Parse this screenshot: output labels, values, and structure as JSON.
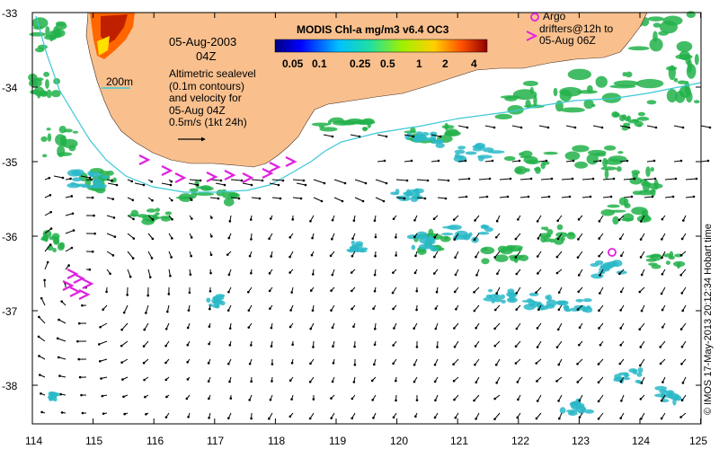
{
  "map": {
    "date": "05-Aug-2003",
    "time": "04Z",
    "isobath_label": "200m",
    "sealevel_text": [
      "Altimetric sealevel",
      "(0.1m contours)",
      "and velocity for",
      "05-Aug 04Z",
      "0.5m/s (1kt 24h)"
    ],
    "colorbar_title": "MODIS Chl-a mg/m3 v6.4 OC3",
    "colorbar_ticks": [
      "0.05",
      "0.1",
      "0.25",
      "0.5",
      "1",
      "2",
      "4"
    ],
    "argo_text": [
      "Argo",
      "drifters@12h to",
      "05-Aug 06Z"
    ],
    "credit": "© IMOS 17-May-2013 20:12:34 Hobart time",
    "lon_ticks": [
      "114",
      "115",
      "116",
      "117",
      "118",
      "119",
      "120",
      "121",
      "122",
      "123",
      "124",
      "125"
    ],
    "lat_ticks": [
      "-33",
      "-34",
      "-35",
      "-36",
      "-37",
      "-38"
    ],
    "colors": {
      "land": "#f9c08e",
      "isobath": "#3cc8d8",
      "argo": "#e020e0",
      "chl_green": "#22b24a",
      "chl_cyan": "#2ab8c8"
    }
  }
}
